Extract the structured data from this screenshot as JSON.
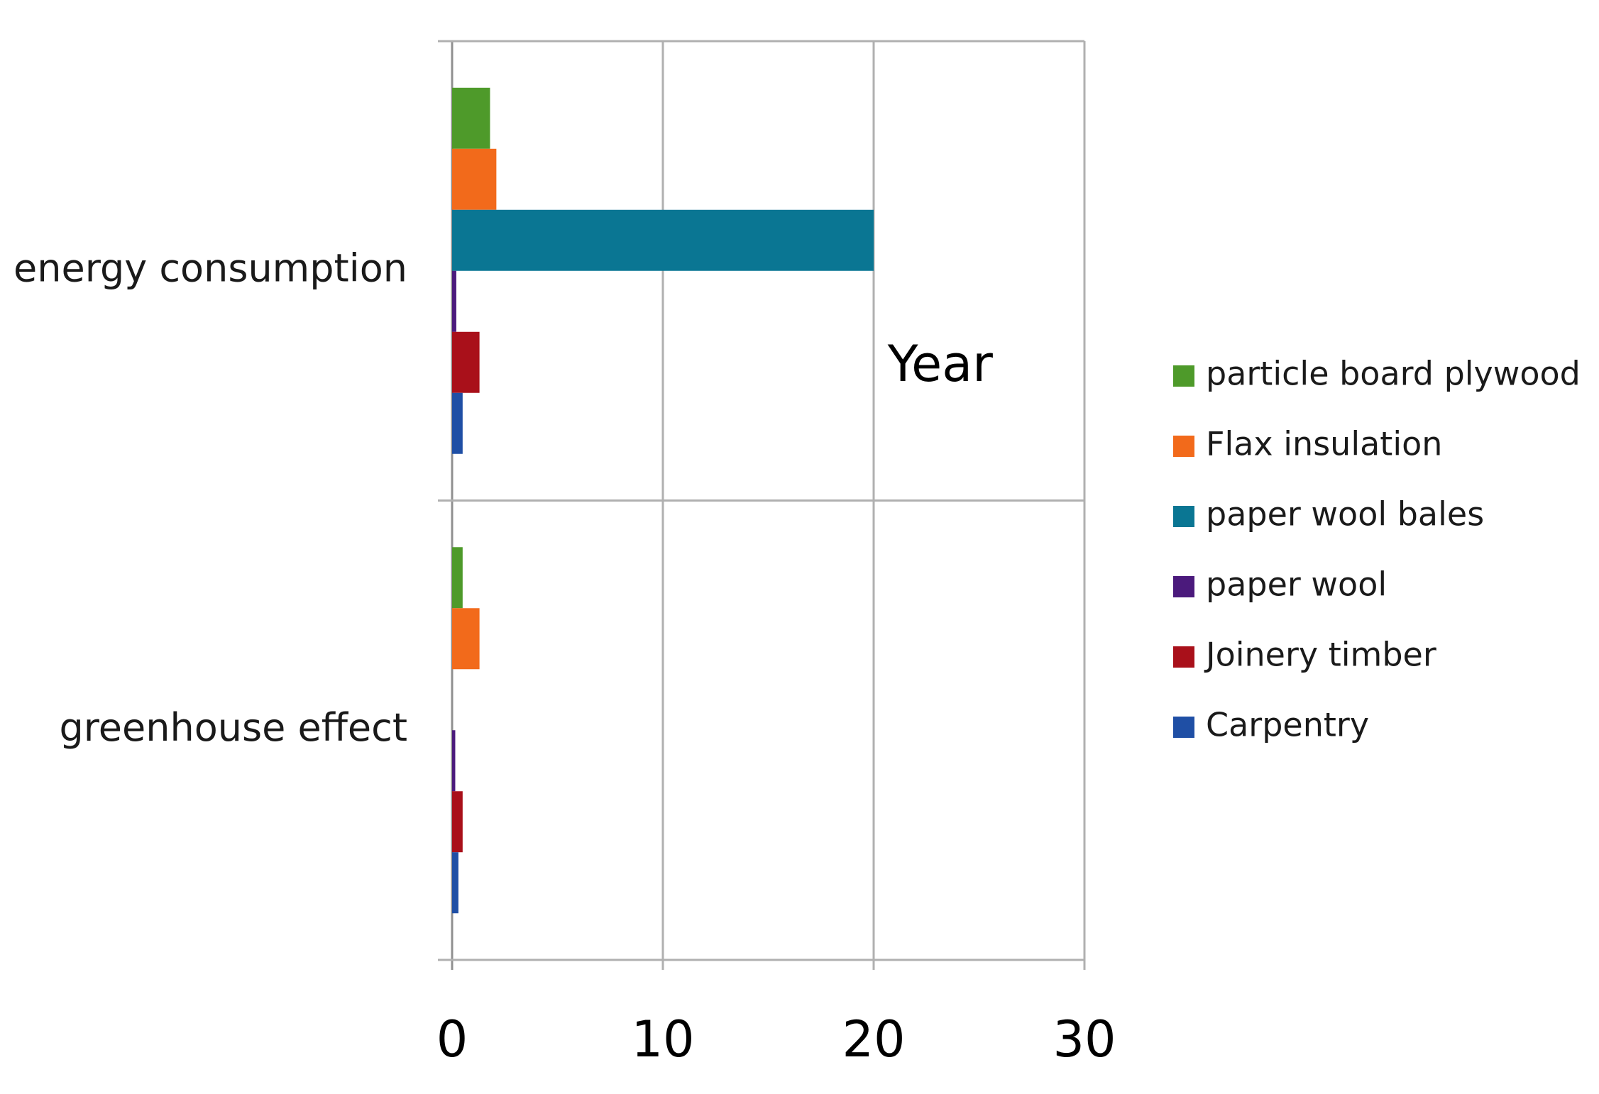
{
  "chart_data": {
    "type": "bar",
    "orientation": "horizontal",
    "title": "",
    "xlabel": "",
    "ylabel": "",
    "xlim": [
      0,
      30
    ],
    "xticks": [
      0,
      10,
      20,
      30
    ],
    "grid": true,
    "categories": [
      "greenhouse effect",
      "energy consumption"
    ],
    "series": [
      {
        "name": "particle board plywood",
        "color": "#4e9a2a",
        "values": [
          0.5,
          1.8
        ]
      },
      {
        "name": "Flax insulation",
        "color": "#f26a1b",
        "values": [
          1.3,
          2.1
        ]
      },
      {
        "name": "paper wool bales",
        "color": "#0a7693",
        "values": [
          0,
          20
        ]
      },
      {
        "name": "paper wool",
        "color": "#4b1a7c",
        "values": [
          0.15,
          0.2
        ]
      },
      {
        "name": "Joinery timber",
        "color": "#a9101a",
        "values": [
          0.5,
          1.3
        ]
      },
      {
        "name": "Carpentry",
        "color": "#1f4fa5",
        "values": [
          0.3,
          0.5
        ]
      }
    ],
    "legend_position": "right",
    "annotations": [
      {
        "text": "Year",
        "x": 24,
        "category": "energy consumption"
      }
    ]
  }
}
